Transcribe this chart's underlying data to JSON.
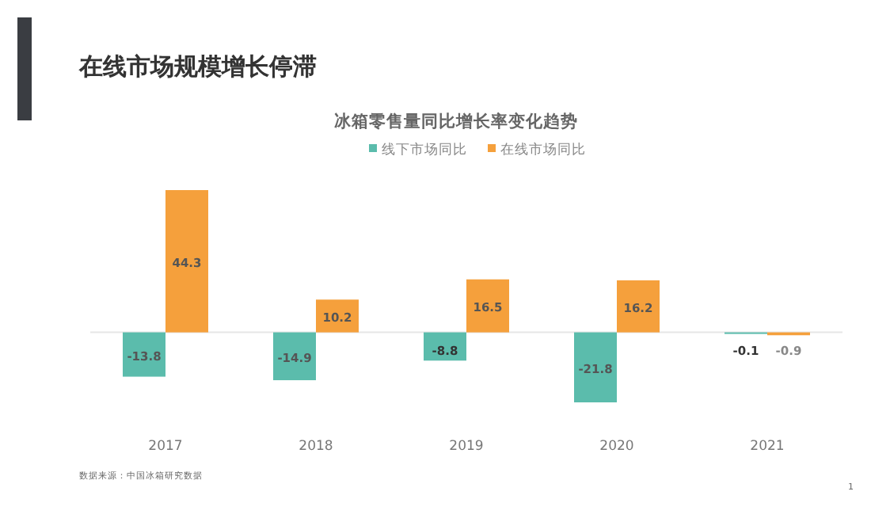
{
  "chart_data": {
    "type": "bar",
    "title": "冰箱零售量同比增长率变化趋势",
    "subtitle": "在线市场规模增长停滞",
    "categories": [
      "2017",
      "2018",
      "2019",
      "2020",
      "2021"
    ],
    "series": [
      {
        "name": "线下市场同比",
        "color": "#5bbcac",
        "values": [
          -13.8,
          -14.9,
          -8.8,
          -21.8,
          -0.1
        ]
      },
      {
        "name": "在线市场同比",
        "color": "#f5a03c",
        "values": [
          44.3,
          10.2,
          16.5,
          16.2,
          -0.9
        ]
      }
    ],
    "data_labels": true,
    "legend": "top",
    "annotations": [
      "数据来源：中国冰箱研究数据",
      "1"
    ]
  }
}
